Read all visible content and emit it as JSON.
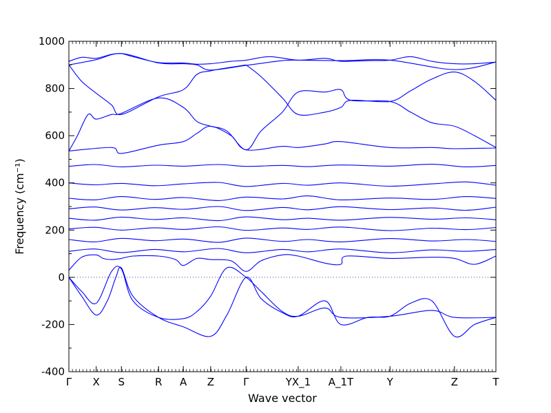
{
  "chart_data": {
    "type": "line",
    "xlabel": "Wave vector",
    "ylabel": "Frequency (cm⁻¹)",
    "ylim": [
      -400,
      1000
    ],
    "yticks": [
      -400,
      -200,
      0,
      200,
      400,
      600,
      800,
      1000
    ],
    "x_ticks": [
      {
        "label": "Γ",
        "x": 0.0
      },
      {
        "label": "X",
        "x": 0.064
      },
      {
        "label": "S",
        "x": 0.123
      },
      {
        "label": "R",
        "x": 0.21
      },
      {
        "label": "A",
        "x": 0.268
      },
      {
        "label": "Z",
        "x": 0.332
      },
      {
        "label": "Γ",
        "x": 0.415
      },
      {
        "label": "YX_1",
        "x": 0.537
      },
      {
        "label": "A_1T",
        "x": 0.637
      },
      {
        "label": "Y",
        "x": 0.752
      },
      {
        "label": "Z",
        "x": 0.903
      },
      {
        "label": "T",
        "x": 1.0
      }
    ],
    "zero_line": true,
    "line_color": "#0000ff",
    "series": [
      {
        "x": [
          0,
          0.03,
          0.064,
          0.1,
          0.123,
          0.15,
          0.21,
          0.268,
          0.3,
          0.332,
          0.38,
          0.415,
          0.47,
          0.537,
          0.6,
          0.637,
          0.7,
          0.752,
          0.8,
          0.85,
          0.903,
          0.95,
          1.0
        ],
        "y": [
          915,
          932,
          928,
          945,
          948,
          935,
          910,
          908,
          903,
          905,
          915,
          920,
          935,
          920,
          928,
          915,
          918,
          920,
          935,
          915,
          905,
          905,
          912
        ]
      },
      {
        "x": [
          0,
          0.064,
          0.123,
          0.21,
          0.268,
          0.3,
          0.332,
          0.415,
          0.5,
          0.537,
          0.637,
          0.752,
          0.903,
          1.0
        ],
        "y": [
          900,
          922,
          948,
          908,
          905,
          900,
          878,
          898,
          918,
          920,
          918,
          920,
          880,
          912
        ]
      },
      {
        "x": [
          0,
          0.03,
          0.064,
          0.1,
          0.123,
          0.21,
          0.268,
          0.3,
          0.332,
          0.38,
          0.415
        ],
        "y": [
          900,
          830,
          780,
          730,
          690,
          765,
          795,
          860,
          875,
          890,
          900
        ]
      },
      {
        "x": [
          0.415,
          0.45,
          0.5,
          0.537,
          0.6,
          0.637,
          0.66,
          0.752,
          0.8,
          0.85,
          0.903,
          0.95,
          1.0
        ],
        "y": [
          900,
          850,
          760,
          690,
          700,
          720,
          750,
          745,
          790,
          840,
          870,
          830,
          750
        ]
      },
      {
        "x": [
          0,
          0.02,
          0.045,
          0.064,
          0.1,
          0.123,
          0.21,
          0.268,
          0.3,
          0.332,
          0.37,
          0.415,
          0.45,
          0.5,
          0.537,
          0.6,
          0.637,
          0.66,
          0.752,
          0.8,
          0.85,
          0.903,
          0.95,
          1.0
        ],
        "y": [
          535,
          600,
          690,
          670,
          690,
          695,
          760,
          720,
          660,
          640,
          620,
          540,
          620,
          700,
          785,
          785,
          795,
          750,
          745,
          700,
          655,
          640,
          600,
          550
        ]
      },
      {
        "x": [
          0,
          0.1,
          0.123,
          0.21,
          0.268,
          0.3,
          0.332,
          0.38,
          0.415,
          0.5,
          0.537,
          0.6,
          0.637,
          0.752,
          0.85,
          0.903,
          1.0
        ],
        "y": [
          535,
          550,
          525,
          560,
          575,
          610,
          640,
          600,
          540,
          555,
          550,
          565,
          575,
          550,
          550,
          545,
          548
        ]
      },
      {
        "x": [
          0,
          0.06,
          0.123,
          0.2,
          0.27,
          0.35,
          0.415,
          0.5,
          0.56,
          0.637,
          0.75,
          0.85,
          0.93,
          1.0
        ],
        "y": [
          470,
          478,
          468,
          475,
          471,
          478,
          470,
          474,
          469,
          476,
          471,
          479,
          468,
          474
        ]
      },
      {
        "x": [
          0,
          0.06,
          0.123,
          0.2,
          0.27,
          0.35,
          0.415,
          0.5,
          0.56,
          0.637,
          0.75,
          0.85,
          0.93,
          1.0
        ],
        "y": [
          400,
          392,
          398,
          388,
          396,
          402,
          385,
          398,
          390,
          400,
          386,
          396,
          404,
          390
        ]
      },
      {
        "x": [
          0,
          0.06,
          0.123,
          0.2,
          0.27,
          0.35,
          0.415,
          0.5,
          0.56,
          0.637,
          0.75,
          0.85,
          0.93,
          1.0
        ],
        "y": [
          335,
          328,
          342,
          330,
          338,
          325,
          340,
          332,
          345,
          328,
          336,
          330,
          342,
          334
        ]
      },
      {
        "x": [
          0,
          0.06,
          0.123,
          0.2,
          0.27,
          0.35,
          0.415,
          0.5,
          0.56,
          0.637,
          0.75,
          0.85,
          0.93,
          1.0
        ],
        "y": [
          290,
          298,
          285,
          295,
          288,
          300,
          283,
          296,
          286,
          299,
          287,
          294,
          284,
          297
        ]
      },
      {
        "x": [
          0,
          0.06,
          0.123,
          0.2,
          0.27,
          0.35,
          0.415,
          0.5,
          0.56,
          0.637,
          0.75,
          0.85,
          0.93,
          1.0
        ],
        "y": [
          250,
          242,
          255,
          245,
          252,
          240,
          256,
          244,
          250,
          242,
          254,
          246,
          252,
          244
        ]
      },
      {
        "x": [
          0,
          0.06,
          0.123,
          0.2,
          0.27,
          0.35,
          0.415,
          0.5,
          0.56,
          0.637,
          0.75,
          0.85,
          0.93,
          1.0
        ],
        "y": [
          205,
          212,
          200,
          210,
          203,
          214,
          199,
          209,
          203,
          213,
          198,
          208,
          202,
          211
        ]
      },
      {
        "x": [
          0,
          0.06,
          0.123,
          0.2,
          0.27,
          0.35,
          0.415,
          0.5,
          0.56,
          0.637,
          0.75,
          0.85,
          0.93,
          1.0
        ],
        "y": [
          160,
          150,
          165,
          155,
          162,
          148,
          166,
          152,
          160,
          150,
          164,
          154,
          160,
          152
        ]
      },
      {
        "x": [
          0,
          0.06,
          0.123,
          0.2,
          0.27,
          0.35,
          0.415,
          0.5,
          0.56,
          0.637,
          0.75,
          0.85,
          0.93,
          1.0
        ],
        "y": [
          110,
          120,
          105,
          118,
          108,
          122,
          104,
          118,
          108,
          120,
          104,
          116,
          110,
          118
        ]
      },
      {
        "x": [
          0,
          0.03,
          0.064,
          0.08,
          0.1,
          0.123,
          0.15,
          0.21,
          0.25,
          0.268,
          0.3,
          0.332,
          0.38,
          0.415,
          0.45,
          0.5,
          0.537,
          0.6,
          0.637,
          0.65,
          0.752,
          0.85,
          0.903,
          0.95,
          1.0
        ],
        "y": [
          30,
          85,
          95,
          80,
          75,
          80,
          90,
          90,
          75,
          50,
          80,
          75,
          70,
          25,
          70,
          95,
          90,
          60,
          55,
          90,
          80,
          85,
          80,
          55,
          90
        ]
      },
      {
        "x": [
          0,
          0.03,
          0.064,
          0.1,
          0.123,
          0.15,
          0.21,
          0.268,
          0.3,
          0.332,
          0.37,
          0.415,
          0.45,
          0.5,
          0.537,
          0.6,
          0.637,
          0.752,
          0.85,
          0.903,
          1.0
        ],
        "y": [
          0,
          -60,
          -110,
          25,
          35,
          -100,
          -170,
          -175,
          -145,
          -80,
          40,
          0,
          -60,
          -145,
          -165,
          -130,
          -170,
          -165,
          -140,
          -170,
          -170
        ]
      },
      {
        "x": [
          0,
          0.03,
          0.064,
          0.09,
          0.11,
          0.123,
          0.15,
          0.21,
          0.268,
          0.332,
          0.37,
          0.415,
          0.45,
          0.5,
          0.537,
          0.6,
          0.637,
          0.7,
          0.752,
          0.8,
          0.85,
          0.903,
          0.95,
          1.0
        ],
        "y": [
          0,
          -80,
          -160,
          -100,
          0,
          40,
          -80,
          -170,
          -210,
          -250,
          -160,
          0,
          -90,
          -150,
          -165,
          -100,
          -200,
          -170,
          -165,
          -110,
          -100,
          -250,
          -200,
          -170
        ]
      }
    ]
  }
}
